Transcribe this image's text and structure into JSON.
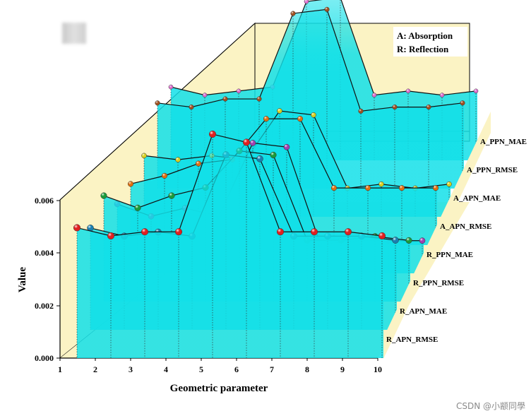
{
  "chart_data": {
    "type": "line",
    "xlabel": "Geometric parameter",
    "ylabel": "Value",
    "x": [
      1,
      2,
      3,
      4,
      5,
      6,
      7,
      8,
      9,
      10
    ],
    "xlim": [
      1,
      10
    ],
    "ylim": [
      0,
      0.006
    ],
    "y_ticks": [
      "0.000",
      "0.002",
      "0.004",
      "0.006"
    ],
    "x_ticks": [
      "1",
      "2",
      "3",
      "4",
      "5",
      "6",
      "7",
      "8",
      "9",
      "10"
    ],
    "legend": [
      "A: Absorption",
      "R: Reflection"
    ],
    "series": [
      {
        "name": "R_APN_RMSE",
        "color": "#e02020",
        "values": [
          0.0035,
          0.0033,
          0.0034,
          0.0034,
          0.0058,
          0.0056,
          0.0034,
          0.0034,
          0.0034,
          0.0033
        ]
      },
      {
        "name": "R_APN_MAE",
        "color": "#1a7fb0",
        "values": [
          0.0028,
          0.0026,
          0.0027,
          0.0026,
          0.0046,
          0.0045,
          0.0026,
          0.0026,
          0.0026,
          0.0025
        ]
      },
      {
        "name": "R_PPN_RMSE",
        "color": "#1a9a3a",
        "values": [
          0.0029,
          0.0026,
          0.0029,
          0.0031,
          0.004,
          0.0039,
          0.0018,
          0.0018,
          0.0019,
          0.0018
        ]
      },
      {
        "name": "R_PPN_MAE",
        "color": "#a040b0",
        "values": [
          0.002,
          0.0017,
          0.0019,
          0.0017,
          0.0035,
          0.0034,
          0.001,
          0.0011,
          0.0011,
          0.0011
        ]
      },
      {
        "name": "A_APN_RMSE",
        "color": "#e07010",
        "values": [
          0.0018,
          0.002,
          0.0023,
          0.0024,
          0.0034,
          0.0034,
          0.0017,
          0.0017,
          0.0017,
          0.0017
        ]
      },
      {
        "name": "A_APN_MAE",
        "color": "#d8d020",
        "values": [
          0.0018,
          0.0017,
          0.0018,
          0.0017,
          0.0029,
          0.0028,
          0.001,
          0.0011,
          0.001,
          0.0011
        ]
      },
      {
        "name": "A_PPN_RMSE",
        "color": "#a05020",
        "values": [
          0.0024,
          0.0023,
          0.0025,
          0.0025,
          0.0046,
          0.0047,
          0.0022,
          0.0023,
          0.0023,
          0.0024
        ]
      },
      {
        "name": "A_PPN_MAE",
        "color": "#e070d0",
        "values": [
          0.0021,
          0.0019,
          0.002,
          0.0021,
          0.0042,
          0.0043,
          0.0019,
          0.002,
          0.0019,
          0.002
        ]
      }
    ],
    "watermark": "CSDN @小颛同學"
  },
  "colors": {
    "back_panel": "#fbf3c4",
    "fill": "#12e0e8",
    "line": "#000000"
  }
}
